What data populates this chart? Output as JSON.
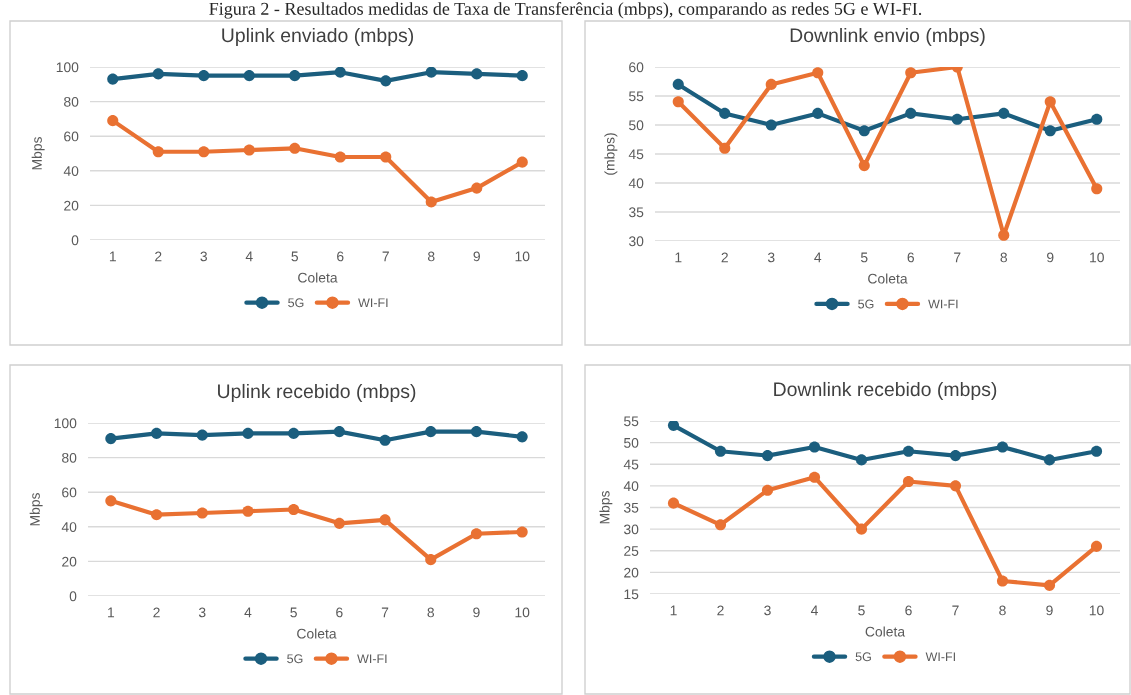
{
  "chart_data": [
    {
      "type": "line",
      "title": "Uplink enviado (mbps)",
      "xlabel": "Coleta",
      "ylabel": "Mbps",
      "annotations": [
        "Figura 2 - Resultados medidas de Taxa de Transferência (mbps), comparando as redes 5G e WI-FI."
      ],
      "categories": [
        "1",
        "2",
        "3",
        "4",
        "5",
        "6",
        "7",
        "8",
        "9",
        "10"
      ],
      "ylim": [
        0,
        100
      ],
      "yticks": [
        0,
        20,
        40,
        60,
        80,
        100
      ],
      "grid": "y",
      "legend": "bottom",
      "marker": "circle",
      "line_style": "solid",
      "series": [
        {
          "name": "5G",
          "color": "#1b5e7e",
          "values": [
            93,
            96,
            95,
            95,
            95,
            97,
            92,
            97,
            96,
            95
          ]
        },
        {
          "name": "WI-FI",
          "color": "#e97132",
          "values": [
            69,
            51,
            51,
            52,
            53,
            48,
            48,
            22,
            30,
            45
          ]
        }
      ]
    },
    {
      "type": "line",
      "title": "Downlink envio (mbps)",
      "xlabel": "Coleta",
      "ylabel": "(mbps)",
      "categories": [
        "1",
        "2",
        "3",
        "4",
        "5",
        "6",
        "7",
        "8",
        "9",
        "10"
      ],
      "ylim": [
        30,
        60
      ],
      "yticks": [
        30,
        35,
        40,
        45,
        50,
        55,
        60
      ],
      "grid": "y",
      "legend": "bottom",
      "marker": "circle",
      "line_style": "solid",
      "series": [
        {
          "name": "5G",
          "color": "#1b5e7e",
          "values": [
            57,
            52,
            50,
            52,
            49,
            52,
            51,
            52,
            49,
            51
          ]
        },
        {
          "name": "WI-FI",
          "color": "#e97132",
          "values": [
            54,
            46,
            57,
            59,
            43,
            59,
            60,
            31,
            54,
            39
          ]
        }
      ]
    },
    {
      "type": "line",
      "title": "Uplink recebido (mbps)",
      "xlabel": "Coleta",
      "ylabel": "Mbps",
      "categories": [
        "1",
        "2",
        "3",
        "4",
        "5",
        "6",
        "7",
        "8",
        "9",
        "10"
      ],
      "ylim": [
        0,
        100
      ],
      "yticks": [
        0,
        20,
        40,
        60,
        80,
        100
      ],
      "grid": "y",
      "legend": "bottom",
      "marker": "circle",
      "line_style": "solid",
      "series": [
        {
          "name": "5G",
          "color": "#1b5e7e",
          "values": [
            91,
            94,
            93,
            94,
            94,
            95,
            90,
            95,
            95,
            92
          ]
        },
        {
          "name": "WI-FI",
          "color": "#e97132",
          "values": [
            55,
            47,
            48,
            49,
            50,
            42,
            44,
            21,
            36,
            37
          ]
        }
      ]
    },
    {
      "type": "line",
      "title": "Downlink recebido (mbps)",
      "xlabel": "Coleta",
      "ylabel": "Mbps",
      "categories": [
        "1",
        "2",
        "3",
        "4",
        "5",
        "6",
        "7",
        "8",
        "9",
        "10"
      ],
      "ylim": [
        15,
        55
      ],
      "yticks": [
        15,
        20,
        25,
        30,
        35,
        40,
        45,
        50,
        55
      ],
      "grid": "y",
      "legend": "bottom",
      "marker": "circle",
      "line_style": "solid",
      "series": [
        {
          "name": "5G",
          "color": "#1b5e7e",
          "values": [
            54,
            48,
            47,
            49,
            46,
            48,
            47,
            49,
            46,
            48
          ]
        },
        {
          "name": "WI-FI",
          "color": "#e97132",
          "values": [
            36,
            31,
            39,
            42,
            30,
            41,
            40,
            18,
            17,
            26
          ]
        }
      ]
    }
  ]
}
